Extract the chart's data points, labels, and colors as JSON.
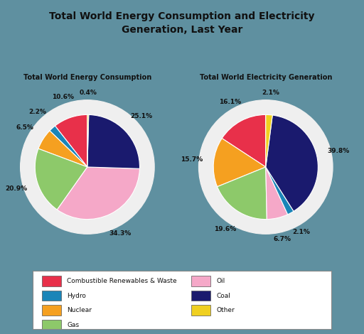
{
  "title": "Total World Energy Consumption and Electricity\nGeneration, Last Year",
  "chart1_title": "Total World Energy Consumption",
  "chart2_title": "Total World Electricity Generation",
  "colors": {
    "Combustible Renewables & Waste": "#E8304A",
    "Hydro": "#1A85B8",
    "Nuclear": "#F5A020",
    "Gas": "#8DC96A",
    "Oil": "#F5A8C8",
    "Coal": "#1A1A6E",
    "Other": "#F0D020"
  },
  "pie1_values": [
    10.6,
    2.2,
    6.5,
    20.9,
    34.3,
    25.1,
    0.4
  ],
  "pie1_labels": [
    "10.6%",
    "2.2%",
    "6.5%",
    "20.9%",
    "34.3%",
    "25.1%",
    "0.4%"
  ],
  "pie1_order": [
    "Combustible Renewables & Waste",
    "Hydro",
    "Nuclear",
    "Gas",
    "Oil",
    "Coal",
    "Other"
  ],
  "pie2_values": [
    16.1,
    15.7,
    19.6,
    6.7,
    2.1,
    39.8,
    2.1
  ],
  "pie2_labels": [
    "16.1%",
    "15.7%",
    "19.6%",
    "6.7%",
    "2.1%",
    "39.8%",
    "2.1%"
  ],
  "pie2_order": [
    "Combustible Renewables & Waste",
    "Nuclear",
    "Gas",
    "Oil",
    "Hydro",
    "Coal",
    "Other"
  ],
  "background_color": "#5F90A0",
  "pie_bg_color": "#EFEFEF",
  "legend_items_left": [
    "Combustible Renewables & Waste",
    "Hydro",
    "Nuclear",
    "Gas"
  ],
  "legend_items_right": [
    "Oil",
    "Coal",
    "Other"
  ]
}
